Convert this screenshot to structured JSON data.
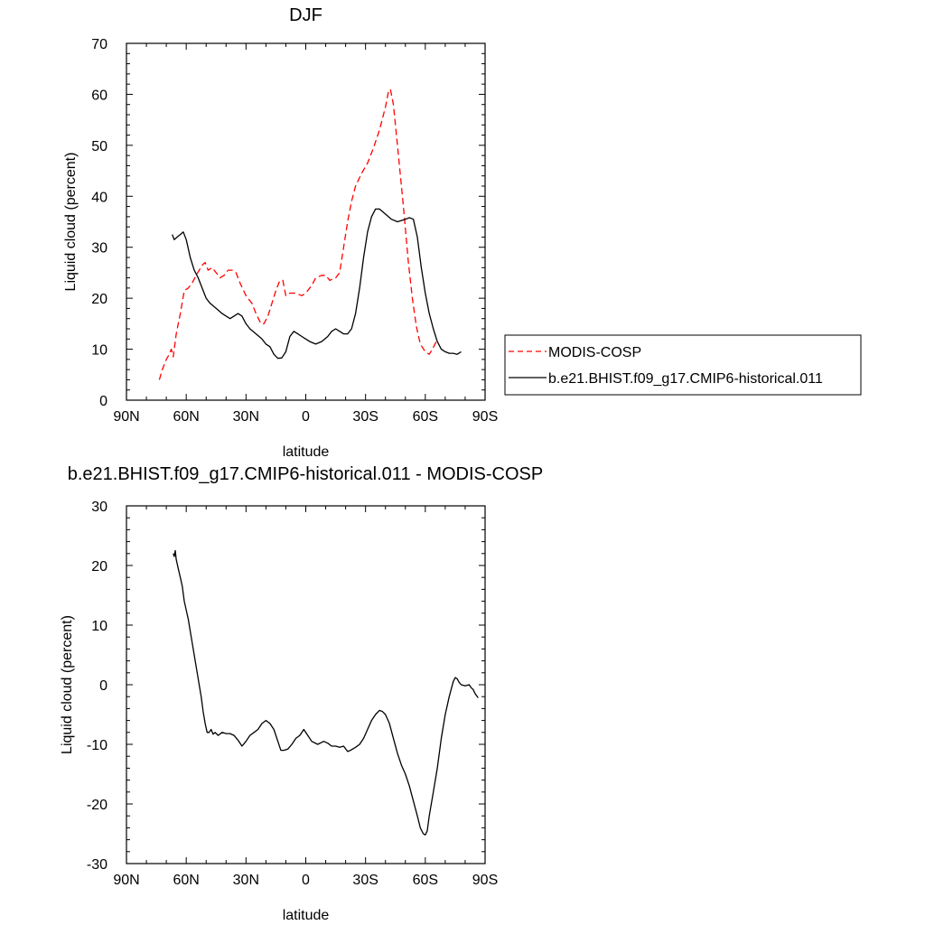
{
  "chart_data": [
    {
      "type": "line",
      "title": "DJF",
      "xlabel": "latitude",
      "ylabel": "Liquid cloud (percent)",
      "xlim": [
        90,
        -90
      ],
      "ylim": [
        0,
        70
      ],
      "x_ticks": [
        90,
        60,
        30,
        0,
        -30,
        -60,
        -90
      ],
      "x_tick_labels": [
        "90N",
        "60N",
        "30N",
        "0",
        "30S",
        "60S",
        "90S"
      ],
      "y_ticks": [
        0,
        10,
        20,
        30,
        40,
        50,
        60,
        70
      ],
      "y_tick_labels": [
        "0",
        "10",
        "20",
        "30",
        "40",
        "50",
        "60",
        "70"
      ],
      "grid": false,
      "legend_position": "right",
      "series": [
        {
          "name": "MODIS-COSP",
          "color": "#ff0000",
          "dash": "dashed",
          "points": [
            [
              73.5,
              4
            ],
            [
              72,
              6
            ],
            [
              70,
              8
            ],
            [
              68.5,
              9
            ],
            [
              67.5,
              10
            ],
            [
              66.5,
              8.5
            ],
            [
              65,
              13
            ],
            [
              63,
              17
            ],
            [
              61,
              21.5
            ],
            [
              59,
              22
            ],
            [
              57,
              23
            ],
            [
              55,
              24.5
            ],
            [
              52,
              26.5
            ],
            [
              50.5,
              27
            ],
            [
              49,
              25.5
            ],
            [
              47,
              26
            ],
            [
              45,
              25
            ],
            [
              43,
              24
            ],
            [
              41,
              24.5
            ],
            [
              39,
              25.5
            ],
            [
              37,
              25.5
            ],
            [
              35,
              25
            ],
            [
              33,
              23
            ],
            [
              30,
              20.5
            ],
            [
              27,
              19
            ],
            [
              25,
              17
            ],
            [
              22.5,
              15
            ],
            [
              21,
              15
            ],
            [
              19,
              16.5
            ],
            [
              17,
              19
            ],
            [
              15,
              21.5
            ],
            [
              13,
              23.5
            ],
            [
              11.5,
              23.5
            ],
            [
              10,
              20.5
            ],
            [
              8,
              21
            ],
            [
              5,
              21
            ],
            [
              2,
              20.5
            ],
            [
              0,
              21
            ],
            [
              -3,
              22.5
            ],
            [
              -5,
              24
            ],
            [
              -8,
              24.5
            ],
            [
              -10,
              24.5
            ],
            [
              -12,
              23.5
            ],
            [
              -15,
              24
            ],
            [
              -17,
              25
            ],
            [
              -19,
              30
            ],
            [
              -21,
              35
            ],
            [
              -23,
              39
            ],
            [
              -25,
              42
            ],
            [
              -28,
              44.5
            ],
            [
              -31,
              46.5
            ],
            [
              -34,
              49.5
            ],
            [
              -37,
              53
            ],
            [
              -40,
              57.5
            ],
            [
              -41.5,
              60.5
            ],
            [
              -42.5,
              61
            ],
            [
              -44,
              58
            ],
            [
              -46,
              50
            ],
            [
              -49,
              38
            ],
            [
              -51.5,
              27
            ],
            [
              -53.5,
              20
            ],
            [
              -55.5,
              14.5
            ],
            [
              -57.5,
              11
            ],
            [
              -60,
              9.5
            ],
            [
              -62,
              9
            ],
            [
              -63.5,
              10
            ],
            [
              -65.5,
              11.5
            ]
          ]
        },
        {
          "name": "b.e21.BHIST.f09_g17.CMIP6-historical.011",
          "color": "#000000",
          "dash": "solid",
          "points": [
            [
              67,
              32.5
            ],
            [
              66,
              31.5
            ],
            [
              64.5,
              32
            ],
            [
              63,
              32.5
            ],
            [
              61.5,
              33
            ],
            [
              60,
              31.5
            ],
            [
              58,
              28
            ],
            [
              56,
              25.5
            ],
            [
              54,
              24
            ],
            [
              52,
              22
            ],
            [
              50,
              20
            ],
            [
              48,
              19
            ],
            [
              45,
              18
            ],
            [
              42,
              17
            ],
            [
              40,
              16.5
            ],
            [
              38,
              16
            ],
            [
              36,
              16.5
            ],
            [
              34,
              17
            ],
            [
              32,
              16.5
            ],
            [
              30,
              15
            ],
            [
              28,
              14
            ],
            [
              25,
              13
            ],
            [
              22,
              12
            ],
            [
              20,
              11
            ],
            [
              18,
              10.5
            ],
            [
              16,
              9
            ],
            [
              14,
              8.2
            ],
            [
              12,
              8.3
            ],
            [
              10,
              9.5
            ],
            [
              8,
              12.5
            ],
            [
              6,
              13.5
            ],
            [
              4,
              13
            ],
            [
              2,
              12.5
            ],
            [
              0,
              12
            ],
            [
              -2,
              11.5
            ],
            [
              -5,
              11
            ],
            [
              -8,
              11.5
            ],
            [
              -11,
              12.5
            ],
            [
              -13,
              13.5
            ],
            [
              -15,
              14
            ],
            [
              -17,
              13.5
            ],
            [
              -19,
              13
            ],
            [
              -21,
              13
            ],
            [
              -23,
              14
            ],
            [
              -25,
              17
            ],
            [
              -27,
              22
            ],
            [
              -29,
              28
            ],
            [
              -31,
              33
            ],
            [
              -33,
              36
            ],
            [
              -35,
              37.5
            ],
            [
              -37,
              37.5
            ],
            [
              -40,
              36.5
            ],
            [
              -43,
              35.5
            ],
            [
              -46,
              35
            ],
            [
              -50,
              35.5
            ],
            [
              -52,
              35.8
            ],
            [
              -54,
              35.5
            ],
            [
              -56,
              32
            ],
            [
              -58,
              26
            ],
            [
              -60,
              21
            ],
            [
              -62,
              17
            ],
            [
              -64,
              14
            ],
            [
              -66,
              11.5
            ],
            [
              -68,
              10
            ],
            [
              -70,
              9.5
            ],
            [
              -72,
              9.2
            ],
            [
              -74,
              9.2
            ],
            [
              -76,
              9
            ],
            [
              -78,
              9.5
            ]
          ]
        }
      ]
    },
    {
      "type": "line",
      "title": "b.e21.BHIST.f09_g17.CMIP6-historical.011 - MODIS-COSP",
      "xlabel": "latitude",
      "ylabel": "Liquid cloud (percent)",
      "xlim": [
        90,
        -90
      ],
      "ylim": [
        -30,
        30
      ],
      "x_ticks": [
        90,
        60,
        30,
        0,
        -30,
        -60,
        -90
      ],
      "x_tick_labels": [
        "90N",
        "60N",
        "30N",
        "0",
        "30S",
        "60S",
        "90S"
      ],
      "y_ticks": [
        -30,
        -20,
        -10,
        0,
        10,
        20,
        30
      ],
      "y_tick_labels": [
        "-30",
        "-20",
        "-10",
        "0",
        "10",
        "20",
        "30"
      ],
      "grid": false,
      "series": [
        {
          "color": "#000000",
          "dash": "solid",
          "points": [
            [
              66.5,
              22
            ],
            [
              66,
              21.5
            ],
            [
              65.5,
              22.5
            ],
            [
              65,
              21
            ],
            [
              64,
              19.5
            ],
            [
              63,
              18
            ],
            [
              62,
              16.5
            ],
            [
              61,
              14
            ],
            [
              60,
              12.5
            ],
            [
              59,
              11
            ],
            [
              58,
              9
            ],
            [
              57,
              7
            ],
            [
              56,
              5
            ],
            [
              55,
              3
            ],
            [
              53.5,
              0
            ],
            [
              52.5,
              -2
            ],
            [
              51.5,
              -4.5
            ],
            [
              50.5,
              -6.5
            ],
            [
              49.5,
              -8
            ],
            [
              48.5,
              -8
            ],
            [
              47.5,
              -7.5
            ],
            [
              46.5,
              -8.3
            ],
            [
              45.5,
              -8
            ],
            [
              44,
              -8.5
            ],
            [
              42,
              -8
            ],
            [
              40,
              -8.2
            ],
            [
              38,
              -8.2
            ],
            [
              36,
              -8.5
            ],
            [
              34,
              -9.3
            ],
            [
              32,
              -10.3
            ],
            [
              30,
              -9.5
            ],
            [
              28,
              -8.5
            ],
            [
              26,
              -8
            ],
            [
              24,
              -7.5
            ],
            [
              22,
              -6.5
            ],
            [
              20,
              -6
            ],
            [
              18,
              -6.5
            ],
            [
              16,
              -7.5
            ],
            [
              14,
              -9.5
            ],
            [
              12.5,
              -11
            ],
            [
              11,
              -11
            ],
            [
              9,
              -10.8
            ],
            [
              7,
              -10
            ],
            [
              5,
              -9
            ],
            [
              3,
              -8.5
            ],
            [
              1,
              -7.5
            ],
            [
              -1,
              -8.5
            ],
            [
              -3,
              -9.5
            ],
            [
              -6,
              -10
            ],
            [
              -9,
              -9.5
            ],
            [
              -11,
              -9.8
            ],
            [
              -13,
              -10.3
            ],
            [
              -15,
              -10.3
            ],
            [
              -17,
              -10.5
            ],
            [
              -19,
              -10.3
            ],
            [
              -21,
              -11.2
            ],
            [
              -22.5,
              -11
            ],
            [
              -25,
              -10.5
            ],
            [
              -27,
              -10
            ],
            [
              -29,
              -9
            ],
            [
              -31,
              -7.5
            ],
            [
              -33,
              -6
            ],
            [
              -35,
              -5
            ],
            [
              -37,
              -4.3
            ],
            [
              -38.5,
              -4.5
            ],
            [
              -40,
              -5
            ],
            [
              -42,
              -6.5
            ],
            [
              -44,
              -9
            ],
            [
              -46,
              -11.5
            ],
            [
              -48,
              -13.5
            ],
            [
              -50,
              -15
            ],
            [
              -52,
              -17
            ],
            [
              -54,
              -19.5
            ],
            [
              -56,
              -22
            ],
            [
              -57.5,
              -24
            ],
            [
              -59,
              -25
            ],
            [
              -60,
              -25.2
            ],
            [
              -61,
              -24.5
            ],
            [
              -62,
              -22
            ],
            [
              -64,
              -18
            ],
            [
              -66,
              -14
            ],
            [
              -68,
              -9
            ],
            [
              -70,
              -5
            ],
            [
              -72,
              -2
            ],
            [
              -74,
              0.5
            ],
            [
              -75,
              1.2
            ],
            [
              -76,
              1
            ],
            [
              -77,
              0.4
            ],
            [
              -78,
              0
            ],
            [
              -80,
              -0.2
            ],
            [
              -82,
              0
            ],
            [
              -83,
              -0.5
            ],
            [
              -84,
              -0.8
            ],
            [
              -85,
              -1.5
            ],
            [
              -86.5,
              -2.2
            ]
          ]
        }
      ]
    }
  ]
}
